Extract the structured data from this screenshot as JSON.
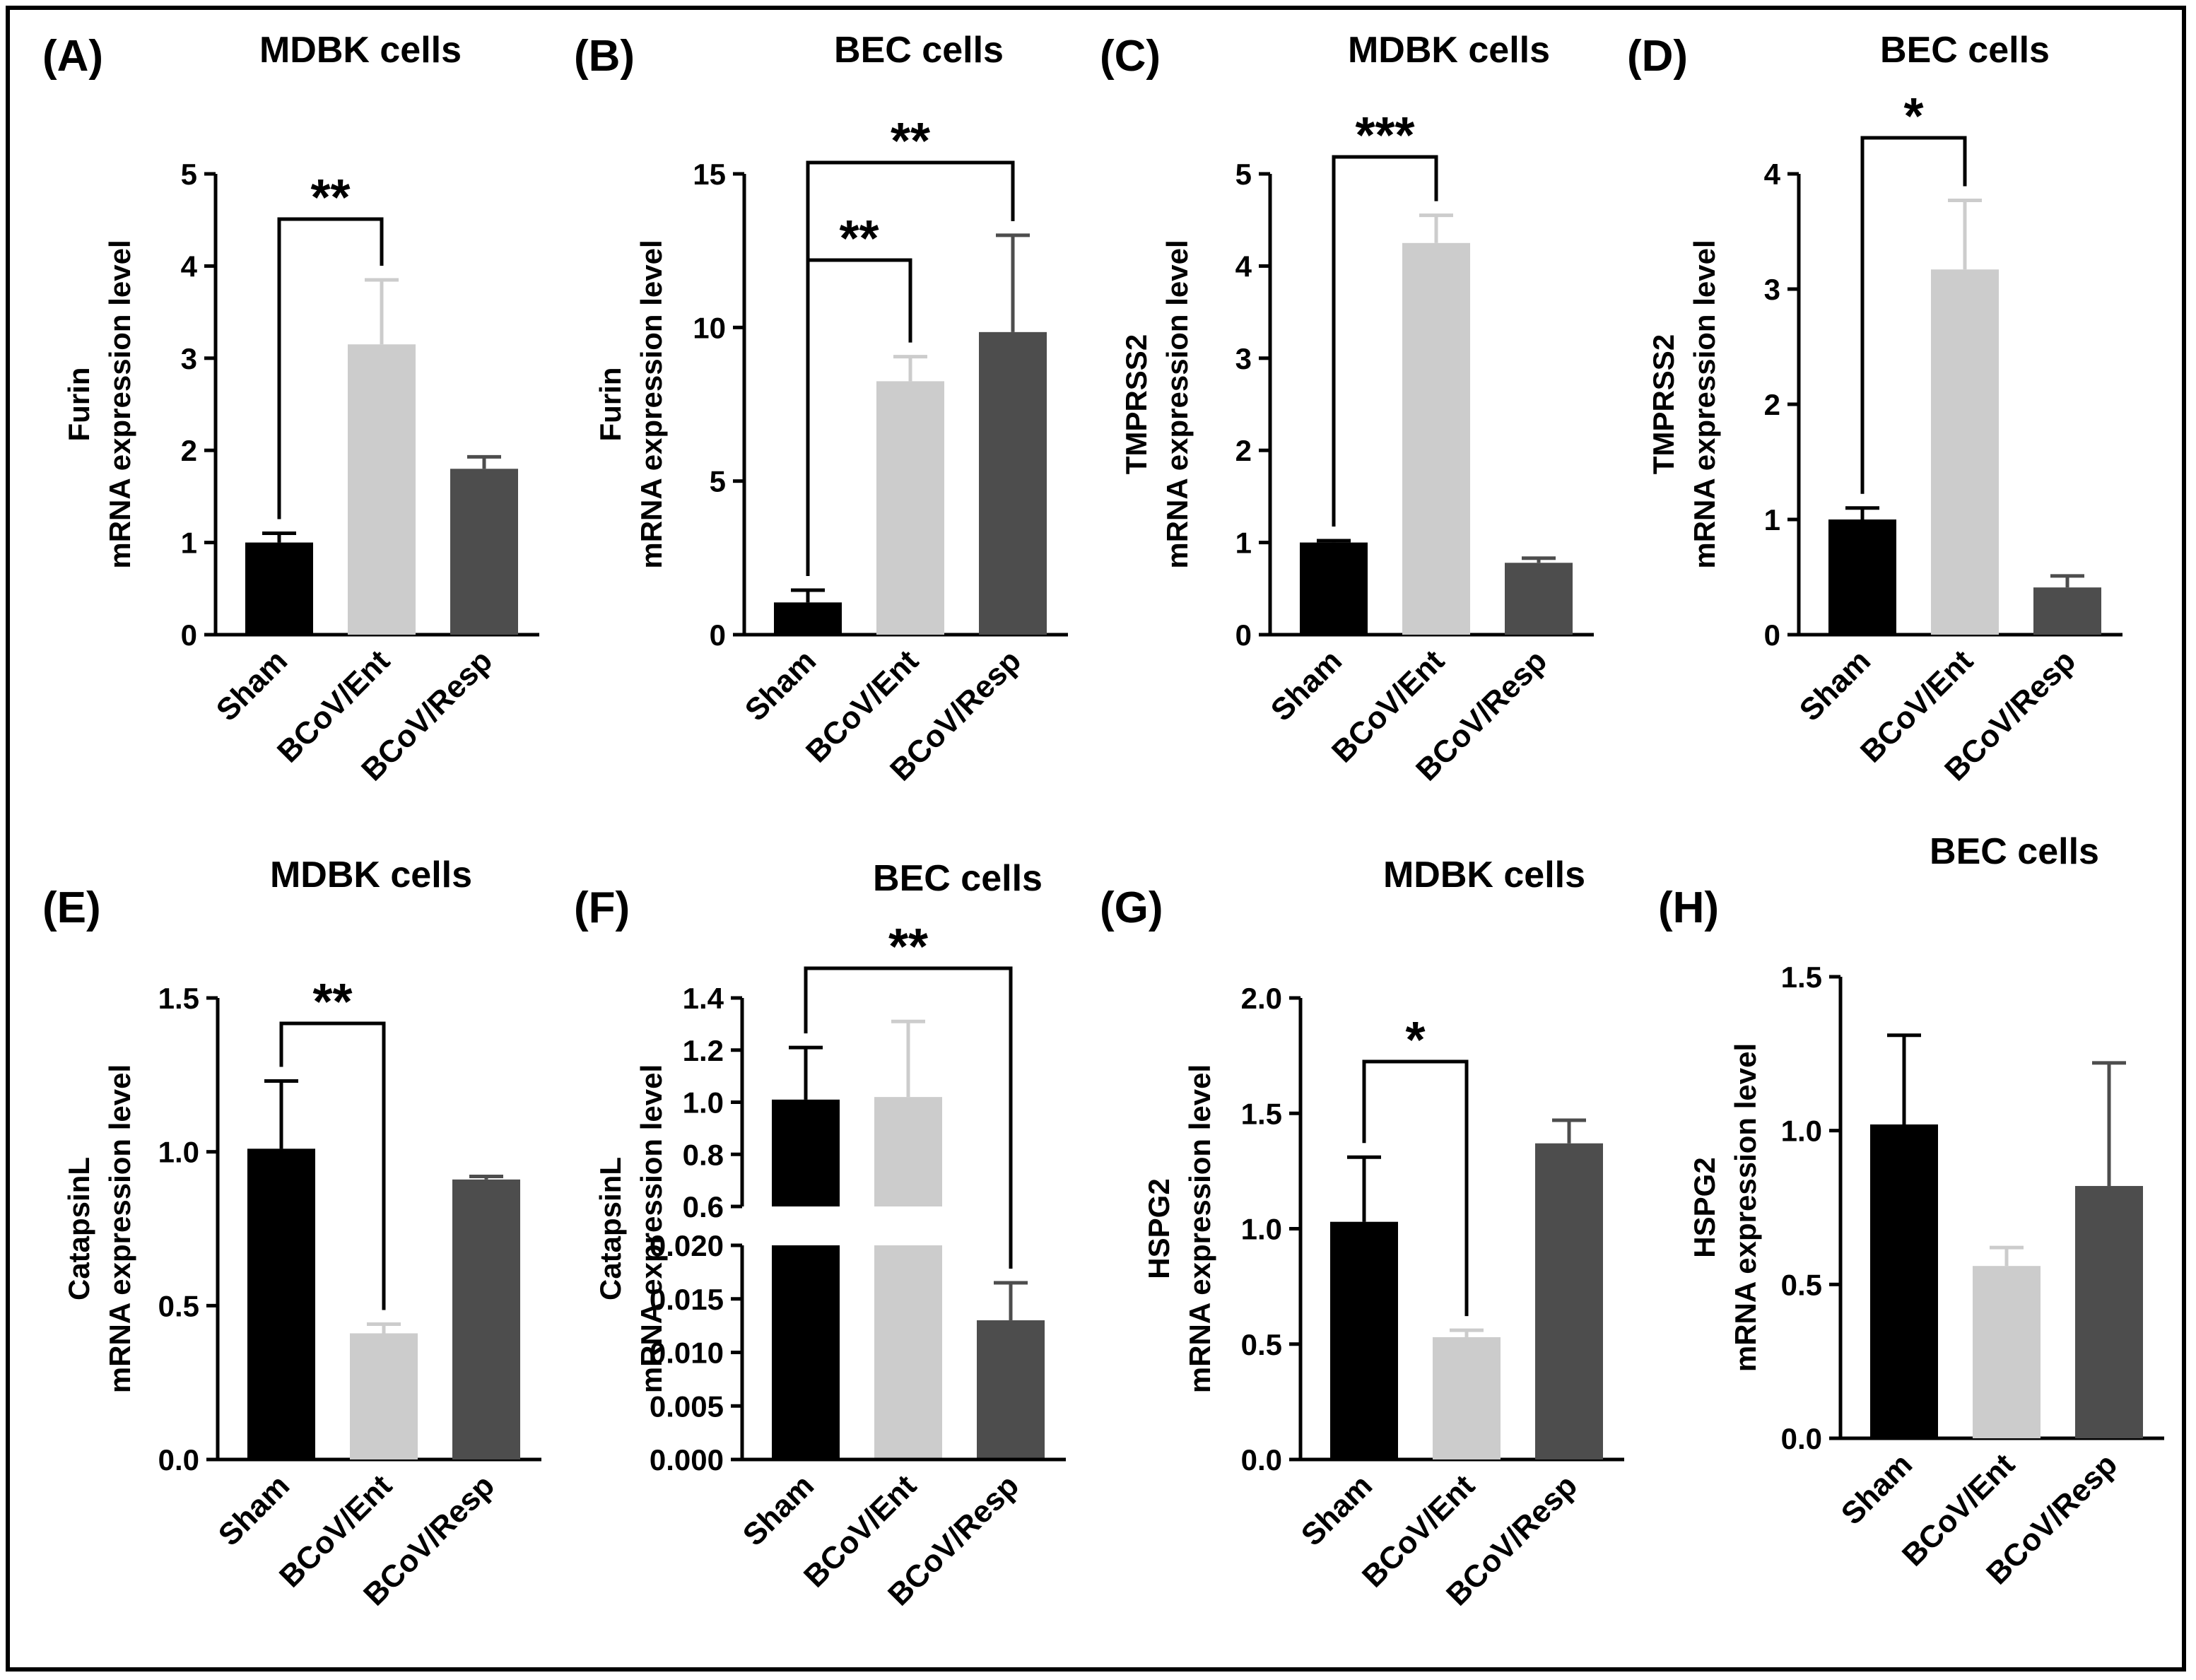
{
  "categories": [
    "Sham",
    "BCoV/Ent",
    "BCoV/Resp"
  ],
  "colors": {
    "sham": "#000000",
    "ent": "#cccccc",
    "resp": "#4d4d4d"
  },
  "chart_data": [
    {
      "type": "bar",
      "panel": "(A)",
      "title": "MDBK cells",
      "ylabel_line1": "Furin",
      "ylabel_line2": "mRNA expression level",
      "ylim": [
        0,
        5
      ],
      "yticks": [
        0,
        1,
        2,
        3,
        4,
        5
      ],
      "values": [
        1.0,
        3.15,
        1.8
      ],
      "errors": [
        0.1,
        0.7,
        0.13
      ],
      "significance": [
        {
          "from": 0,
          "to": 1,
          "label": "**"
        }
      ]
    },
    {
      "type": "bar",
      "panel": "(B)",
      "title": "BEC cells",
      "ylabel_line1": "Furin",
      "ylabel_line2": "mRNA expression level",
      "ylim": [
        0,
        15
      ],
      "yticks": [
        0,
        5,
        10,
        15
      ],
      "values": [
        1.05,
        8.25,
        9.85
      ],
      "errors": [
        0.4,
        0.8,
        3.15
      ],
      "significance": [
        {
          "from": 0,
          "to": 1,
          "label": "**"
        },
        {
          "from": 0,
          "to": 2,
          "label": "**"
        }
      ]
    },
    {
      "type": "bar",
      "panel": "(C)",
      "title": "MDBK cells",
      "ylabel_line1": "TMPRSS2",
      "ylabel_line2": "mRNA expression level",
      "ylim": [
        0,
        5
      ],
      "yticks": [
        0,
        1,
        2,
        3,
        4,
        5
      ],
      "values": [
        1.0,
        4.25,
        0.78
      ],
      "errors": [
        0.02,
        0.3,
        0.05
      ],
      "significance": [
        {
          "from": 0,
          "to": 1,
          "label": "***"
        }
      ]
    },
    {
      "type": "bar",
      "panel": "(D)",
      "title": "BEC cells",
      "ylabel_line1": "TMPRSS2",
      "ylabel_line2": "mRNA expression level",
      "ylim": [
        0,
        4
      ],
      "yticks": [
        0,
        1,
        2,
        3,
        4
      ],
      "values": [
        1.0,
        3.17,
        0.41
      ],
      "errors": [
        0.1,
        0.6,
        0.1
      ],
      "significance": [
        {
          "from": 0,
          "to": 1,
          "label": "*"
        }
      ]
    },
    {
      "type": "bar",
      "panel": "(E)",
      "title": "MDBK cells",
      "ylabel_line1": "CatapsinL",
      "ylabel_line2": "mRNA expression level",
      "ylim": [
        0,
        1.5
      ],
      "yticks": [
        "0.0",
        "0.5",
        "1.0",
        "1.5"
      ],
      "values": [
        1.01,
        0.41,
        0.91
      ],
      "errors": [
        0.22,
        0.03,
        0.01
      ],
      "significance": [
        {
          "from": 0,
          "to": 1,
          "label": "**"
        }
      ]
    },
    {
      "type": "bar",
      "panel": "(F)",
      "title": "BEC cells",
      "ylabel_line1": "CatapsinL",
      "ylabel_line2": "mRNA expression level",
      "broken_axis": {
        "lower": [
          0,
          0.02
        ],
        "upper": [
          0.6,
          1.4
        ]
      },
      "yticks_lower": [
        "0.000",
        "0.005",
        "0.010",
        "0.015",
        "0.020"
      ],
      "yticks_upper": [
        "0.6",
        "0.8",
        "1.0",
        "1.2",
        "1.4"
      ],
      "values": [
        1.01,
        1.02,
        0.013
      ],
      "errors": [
        0.2,
        0.29,
        0.0035
      ],
      "significance": [
        {
          "from": 0,
          "to": 2,
          "label": "**"
        }
      ]
    },
    {
      "type": "bar",
      "panel": "(G)",
      "title": "MDBK cells",
      "ylabel_line1": "HSPG2",
      "ylabel_line2": "mRNA expression level",
      "ylim": [
        0,
        2.0
      ],
      "yticks": [
        "0.0",
        "0.5",
        "1.0",
        "1.5",
        "2.0"
      ],
      "values": [
        1.03,
        0.53,
        1.37
      ],
      "errors": [
        0.28,
        0.03,
        0.1
      ],
      "significance": [
        {
          "from": 0,
          "to": 1,
          "label": "*"
        }
      ]
    },
    {
      "type": "bar",
      "panel": "(H)",
      "title": "BEC cells",
      "ylabel_line1": "HSPG2",
      "ylabel_line2": "mRNA expression level",
      "ylim": [
        0,
        1.5
      ],
      "yticks": [
        "0.0",
        "0.5",
        "1.0",
        "1.5"
      ],
      "values": [
        1.02,
        0.56,
        0.82
      ],
      "errors": [
        0.29,
        0.06,
        0.4
      ],
      "significance": []
    }
  ]
}
